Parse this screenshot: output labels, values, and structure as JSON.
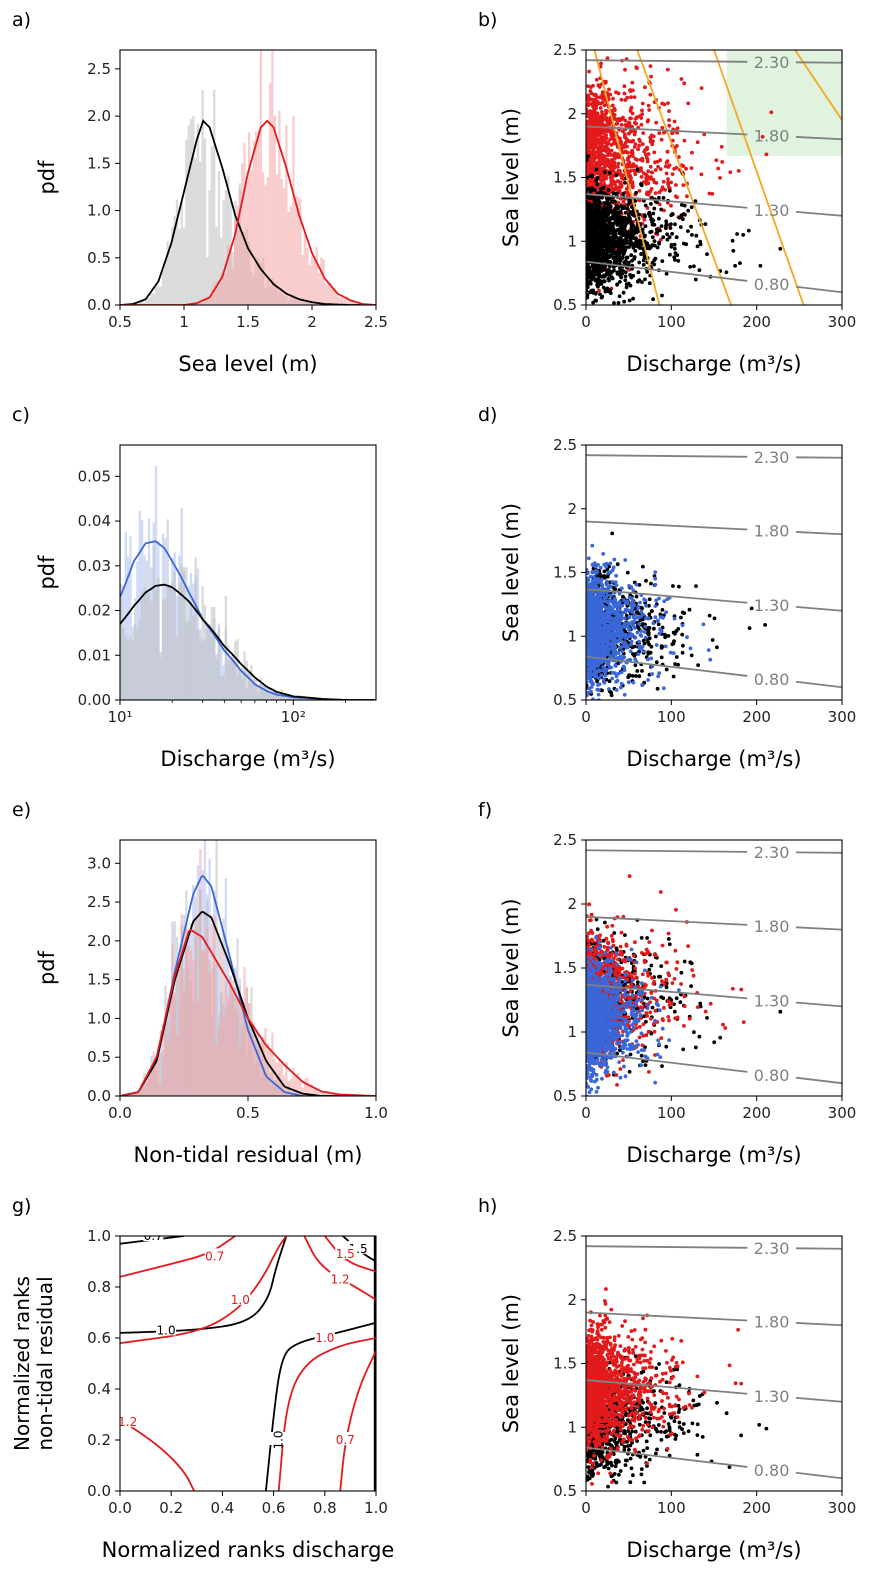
{
  "colors": {
    "black": "#000000",
    "red": "#e31a1c",
    "red_fill": "#f4a4a4",
    "blue": "#3a67d8",
    "blue_fill": "#a9bdf0",
    "gray_fill": "#bdbdbd",
    "orange": "#f5a623",
    "isoline": "#808080",
    "green_box": "#dff3df",
    "mixed_fill": "#b7a0b0"
  },
  "panels": {
    "a": {
      "letter": "a)",
      "xlabel": "Sea level (m)",
      "ylabel": "pdf"
    },
    "b": {
      "letter": "b)",
      "xlabel": "Discharge (m³/s)",
      "ylabel": "Sea level (m)"
    },
    "c": {
      "letter": "c)",
      "xlabel": "Discharge (m³/s)",
      "ylabel": "pdf"
    },
    "d": {
      "letter": "d)",
      "xlabel": "Discharge (m³/s)",
      "ylabel": "Sea level (m)"
    },
    "e": {
      "letter": "e)",
      "xlabel": "Non-tidal residual (m)",
      "ylabel": "pdf"
    },
    "f": {
      "letter": "f)",
      "xlabel": "Discharge (m³/s)",
      "ylabel": "Sea level (m)"
    },
    "g": {
      "letter": "g)",
      "xlabel": "Normalized ranks discharge",
      "ylabel_line1": "Normalized ranks",
      "ylabel_line2": "non-tidal residual"
    },
    "h": {
      "letter": "h)",
      "xlabel": "Discharge (m³/s)",
      "ylabel": "Sea level (m)"
    }
  },
  "chart_data": [
    {
      "panel": "a",
      "type": "area",
      "xlim": [
        0.5,
        2.5
      ],
      "ylim": [
        0,
        2.7
      ],
      "xticks": [
        "0.5",
        "1",
        "1.5",
        "2",
        "2.5"
      ],
      "yticks": [
        "0.0",
        "0.5",
        "1.0",
        "1.5",
        "2.0",
        "2.5"
      ],
      "series": [
        {
          "color": "black",
          "kde": {
            "x": [
              0.5,
              0.6,
              0.7,
              0.8,
              0.9,
              1.0,
              1.1,
              1.15,
              1.2,
              1.3,
              1.4,
              1.5,
              1.6,
              1.7,
              1.8,
              1.9,
              2.0,
              2.1,
              2.3,
              2.5
            ],
            "y": [
              0,
              0.01,
              0.06,
              0.25,
              0.65,
              1.2,
              1.75,
              1.95,
              1.88,
              1.45,
              0.95,
              0.6,
              0.38,
              0.22,
              0.12,
              0.06,
              0.03,
              0.01,
              0,
              0
            ]
          }
        },
        {
          "color": "red",
          "kde": {
            "x": [
              0.5,
              1.0,
              1.1,
              1.2,
              1.3,
              1.4,
              1.5,
              1.6,
              1.65,
              1.7,
              1.8,
              1.9,
              2.0,
              2.1,
              2.2,
              2.3,
              2.4,
              2.5
            ],
            "y": [
              0,
              0,
              0.02,
              0.08,
              0.3,
              0.75,
              1.4,
              1.88,
              1.95,
              1.88,
              1.45,
              0.95,
              0.55,
              0.28,
              0.12,
              0.05,
              0.01,
              0
            ]
          }
        }
      ]
    },
    {
      "panel": "b",
      "type": "scatter",
      "xlim": [
        0,
        300
      ],
      "ylim": [
        0.5,
        2.5
      ],
      "xticks": [
        "0",
        "100",
        "200",
        "300"
      ],
      "yticks": [
        "0.5",
        "1",
        "1.5",
        "2",
        "2.5"
      ],
      "isolines": [
        {
          "label": "2.30",
          "y0": 2.42,
          "y300": 2.4
        },
        {
          "label": "1.80",
          "y0": 1.9,
          "y300": 1.8
        },
        {
          "label": "1.30",
          "y0": 1.37,
          "y300": 1.2
        },
        {
          "label": "0.80",
          "y0": 0.84,
          "y300": 0.6
        }
      ],
      "orange_lines": [
        [
          10,
          2.5,
          86,
          0.5
        ],
        [
          60,
          2.5,
          170,
          0.5
        ],
        [
          150,
          2.5,
          255,
          0.5
        ],
        [
          245,
          2.5,
          300,
          1.95
        ]
      ],
      "highlight_box": {
        "x": [
          165,
          300
        ],
        "y": [
          1.67,
          2.5
        ]
      },
      "series": [
        {
          "color": "red",
          "cloud": {
            "x_scale": 30,
            "y_mean": 1.63,
            "y_sd": 0.3,
            "n": 1300
          }
        },
        {
          "color": "black",
          "cloud": {
            "x_scale": 30,
            "y_mean": 1.02,
            "y_sd": 0.19,
            "n": 1300
          }
        }
      ]
    },
    {
      "panel": "c",
      "type": "area",
      "xscale": "log",
      "xlim": [
        10,
        300
      ],
      "ylim": [
        0,
        0.057
      ],
      "xticks": [
        "10¹",
        "10²"
      ],
      "yticks": [
        "0.00",
        "0.01",
        "0.02",
        "0.03",
        "0.04",
        "0.05"
      ],
      "series": [
        {
          "color": "blue",
          "kde": {
            "x": [
              10,
              12,
              14,
              16,
              18,
              20,
              25,
              30,
              40,
              50,
              60,
              70,
              80,
              100,
              150,
              200,
              300
            ],
            "y": [
              0.023,
              0.031,
              0.035,
              0.0355,
              0.034,
              0.031,
              0.024,
              0.018,
              0.011,
              0.0065,
              0.0035,
              0.002,
              0.0012,
              0.0006,
              0.0002,
              0,
              0
            ]
          }
        },
        {
          "color": "black",
          "kde": {
            "x": [
              10,
              12,
              14,
              16,
              18,
              20,
              25,
              30,
              40,
              50,
              60,
              70,
              80,
              100,
              150,
              200,
              300
            ],
            "y": [
              0.017,
              0.021,
              0.024,
              0.0255,
              0.0258,
              0.0252,
              0.022,
              0.018,
              0.012,
              0.008,
              0.005,
              0.003,
              0.0018,
              0.0008,
              0.0002,
              0,
              0
            ]
          }
        }
      ]
    },
    {
      "panel": "d",
      "type": "scatter",
      "xlim": [
        0,
        300
      ],
      "ylim": [
        0.5,
        2.5
      ],
      "xticks": [
        "0",
        "100",
        "200",
        "300"
      ],
      "yticks": [
        "0.5",
        "1",
        "1.5",
        "2",
        "2.5"
      ],
      "isolines": [
        {
          "label": "2.30",
          "y0": 2.42,
          "y300": 2.4
        },
        {
          "label": "1.80",
          "y0": 1.9,
          "y300": 1.8
        },
        {
          "label": "1.30",
          "y0": 1.37,
          "y300": 1.2
        },
        {
          "label": "0.80",
          "y0": 0.84,
          "y300": 0.6
        }
      ],
      "series": [
        {
          "color": "black",
          "cloud": {
            "x_scale": 30,
            "y_mean": 1.05,
            "y_sd": 0.2,
            "n": 900
          }
        },
        {
          "color": "blue",
          "cloud": {
            "x_scale": 20,
            "y_mean": 1.05,
            "y_sd": 0.2,
            "n": 1300
          }
        }
      ]
    },
    {
      "panel": "e",
      "type": "area",
      "xlim": [
        -0.4,
        1.0
      ],
      "ylim": [
        0,
        3.3
      ],
      "xticks": [
        "0.0",
        "0.5",
        "1.0"
      ],
      "yticks": [
        "0.0",
        "0.5",
        "1.0",
        "1.5",
        "2.0",
        "2.5",
        "3.0"
      ],
      "series": [
        {
          "color": "blue",
          "kde": {
            "x": [
              -0.4,
              -0.3,
              -0.2,
              -0.1,
              0.0,
              0.05,
              0.1,
              0.2,
              0.3,
              0.4,
              0.5,
              0.6,
              1.0
            ],
            "y": [
              0,
              0.05,
              0.45,
              1.6,
              2.6,
              2.85,
              2.7,
              1.8,
              0.85,
              0.25,
              0.05,
              0,
              0
            ]
          }
        },
        {
          "color": "black",
          "kde": {
            "x": [
              -0.4,
              -0.3,
              -0.2,
              -0.1,
              0.0,
              0.05,
              0.1,
              0.2,
              0.3,
              0.4,
              0.5,
              0.6,
              0.7,
              1.0
            ],
            "y": [
              0,
              0.05,
              0.45,
              1.5,
              2.25,
              2.38,
              2.3,
              1.7,
              1.0,
              0.45,
              0.12,
              0.03,
              0,
              0
            ]
          }
        },
        {
          "color": "red",
          "kde": {
            "x": [
              -0.4,
              -0.3,
              -0.2,
              -0.1,
              -0.02,
              0.05,
              0.1,
              0.2,
              0.3,
              0.4,
              0.5,
              0.6,
              0.7,
              0.8,
              1.0
            ],
            "y": [
              0,
              0.05,
              0.5,
              1.55,
              2.15,
              2.05,
              1.85,
              1.45,
              1.0,
              0.65,
              0.4,
              0.18,
              0.06,
              0.02,
              0
            ]
          }
        }
      ]
    },
    {
      "panel": "f",
      "type": "scatter",
      "xlim": [
        0,
        300
      ],
      "ylim": [
        0.5,
        2.5
      ],
      "xticks": [
        "0",
        "100",
        "200",
        "300"
      ],
      "yticks": [
        "0.5",
        "1",
        "1.5",
        "2",
        "2.5"
      ],
      "isolines": [
        {
          "label": "2.30",
          "y0": 2.42,
          "y300": 2.4
        },
        {
          "label": "1.80",
          "y0": 1.9,
          "y300": 1.8
        },
        {
          "label": "1.30",
          "y0": 1.37,
          "y300": 1.2
        },
        {
          "label": "0.80",
          "y0": 0.84,
          "y300": 0.6
        }
      ],
      "series": [
        {
          "color": "black",
          "cloud": {
            "x_scale": 30,
            "y_mean": 1.25,
            "y_sd": 0.22,
            "n": 700
          }
        },
        {
          "color": "red",
          "cloud": {
            "x_scale": 28,
            "y_mean": 1.3,
            "y_sd": 0.24,
            "n": 800
          }
        },
        {
          "color": "blue",
          "cloud": {
            "x_scale": 18,
            "y_mean": 1.1,
            "y_sd": 0.2,
            "n": 1200
          }
        }
      ]
    },
    {
      "panel": "g",
      "type": "line",
      "xlim": [
        0,
        1
      ],
      "ylim": [
        0,
        1
      ],
      "xticks": [
        "0.0",
        "0.2",
        "0.4",
        "0.6",
        "0.8",
        "1.0"
      ],
      "yticks": [
        "0.0",
        "0.2",
        "0.4",
        "0.6",
        "0.8",
        "1.0"
      ],
      "contours": [
        {
          "color": "black",
          "points": [
            [
              0,
              0.62
            ],
            [
              0.3,
              0.63
            ],
            [
              0.5,
              0.66
            ],
            [
              0.58,
              0.75
            ],
            [
              0.61,
              0.88
            ],
            [
              0.65,
              1.0
            ]
          ]
        },
        {
          "color": "black",
          "points": [
            [
              0.57,
              0
            ],
            [
              0.6,
              0.3
            ],
            [
              0.63,
              0.52
            ],
            [
              0.68,
              0.58
            ],
            [
              0.85,
              0.62
            ],
            [
              1.0,
              0.66
            ]
          ]
        },
        {
          "color": "black",
          "points": [
            [
              0.25,
              1.0
            ],
            [
              0.0,
              0.97
            ]
          ]
        },
        {
          "color": "black",
          "points": [
            [
              0.87,
              1.0
            ],
            [
              0.95,
              0.93
            ],
            [
              1.0,
              0.9
            ]
          ]
        },
        {
          "color": "black",
          "points": [
            [
              0.995,
              0
            ],
            [
              0.995,
              1.0
            ]
          ]
        },
        {
          "color": "red",
          "points": [
            [
              0,
              0.58
            ],
            [
              0.3,
              0.62
            ],
            [
              0.45,
              0.7
            ],
            [
              0.55,
              0.82
            ],
            [
              0.62,
              0.96
            ],
            [
              0.65,
              1.0
            ]
          ]
        },
        {
          "color": "red",
          "points": [
            [
              0,
              0.84
            ],
            [
              0.2,
              0.89
            ],
            [
              0.35,
              0.93
            ],
            [
              0.45,
              1.0
            ]
          ]
        },
        {
          "color": "red",
          "points": [
            [
              0.62,
              0
            ],
            [
              0.65,
              0.35
            ],
            [
              0.72,
              0.5
            ],
            [
              0.85,
              0.57
            ],
            [
              1.0,
              0.6
            ]
          ]
        },
        {
          "color": "red",
          "points": [
            [
              0.86,
              0
            ],
            [
              0.88,
              0.2
            ],
            [
              0.93,
              0.4
            ],
            [
              1.0,
              0.55
            ]
          ]
        },
        {
          "color": "red",
          "points": [
            [
              0,
              0.28
            ],
            [
              0.15,
              0.18
            ],
            [
              0.25,
              0.08
            ],
            [
              0.29,
              0
            ]
          ]
        },
        {
          "color": "red",
          "points": [
            [
              0.72,
              1.0
            ],
            [
              0.78,
              0.88
            ],
            [
              0.92,
              0.8
            ],
            [
              1.0,
              0.75
            ]
          ]
        },
        {
          "color": "red",
          "points": [
            [
              0.8,
              1.0
            ],
            [
              0.88,
              0.9
            ],
            [
              1.0,
              0.86
            ]
          ]
        }
      ],
      "contour_labels": [
        {
          "text": "1.0",
          "x": 0.18,
          "y": 0.63,
          "color": "black"
        },
        {
          "text": "1.0",
          "x": 0.62,
          "y": 0.2,
          "color": "black",
          "rotate": -90
        },
        {
          "text": "0.7",
          "x": 0.13,
          "y": 1.0,
          "color": "black"
        },
        {
          "text": "1.5",
          "x": 0.93,
          "y": 0.95,
          "color": "black"
        },
        {
          "text": "0.7",
          "x": 0.37,
          "y": 0.92,
          "color": "red"
        },
        {
          "text": "1.0",
          "x": 0.47,
          "y": 0.75,
          "color": "red"
        },
        {
          "text": "1.0",
          "x": 0.8,
          "y": 0.6,
          "color": "red"
        },
        {
          "text": "1.2",
          "x": 0.03,
          "y": 0.27,
          "color": "red"
        },
        {
          "text": "0.7",
          "x": 0.88,
          "y": 0.2,
          "color": "red"
        },
        {
          "text": "1.2",
          "x": 0.86,
          "y": 0.83,
          "color": "red"
        },
        {
          "text": "1.5",
          "x": 0.88,
          "y": 0.93,
          "color": "red"
        }
      ]
    },
    {
      "panel": "h",
      "type": "scatter",
      "xlim": [
        0,
        300
      ],
      "ylim": [
        0.5,
        2.5
      ],
      "xticks": [
        "0",
        "100",
        "200",
        "300"
      ],
      "yticks": [
        "0.5",
        "1",
        "1.5",
        "2",
        "2.5"
      ],
      "isolines": [
        {
          "label": "2.30",
          "y0": 2.42,
          "y300": 2.4
        },
        {
          "label": "1.80",
          "y0": 1.9,
          "y300": 1.8
        },
        {
          "label": "1.30",
          "y0": 1.37,
          "y300": 1.2
        },
        {
          "label": "0.80",
          "y0": 0.84,
          "y300": 0.6
        }
      ],
      "series": [
        {
          "color": "black",
          "cloud": {
            "x_scale": 30,
            "y_mean": 1.05,
            "y_sd": 0.2,
            "n": 900
          }
        },
        {
          "color": "red",
          "cloud": {
            "x_scale": 26,
            "y_mean": 1.3,
            "y_sd": 0.22,
            "n": 1400
          }
        }
      ]
    }
  ]
}
